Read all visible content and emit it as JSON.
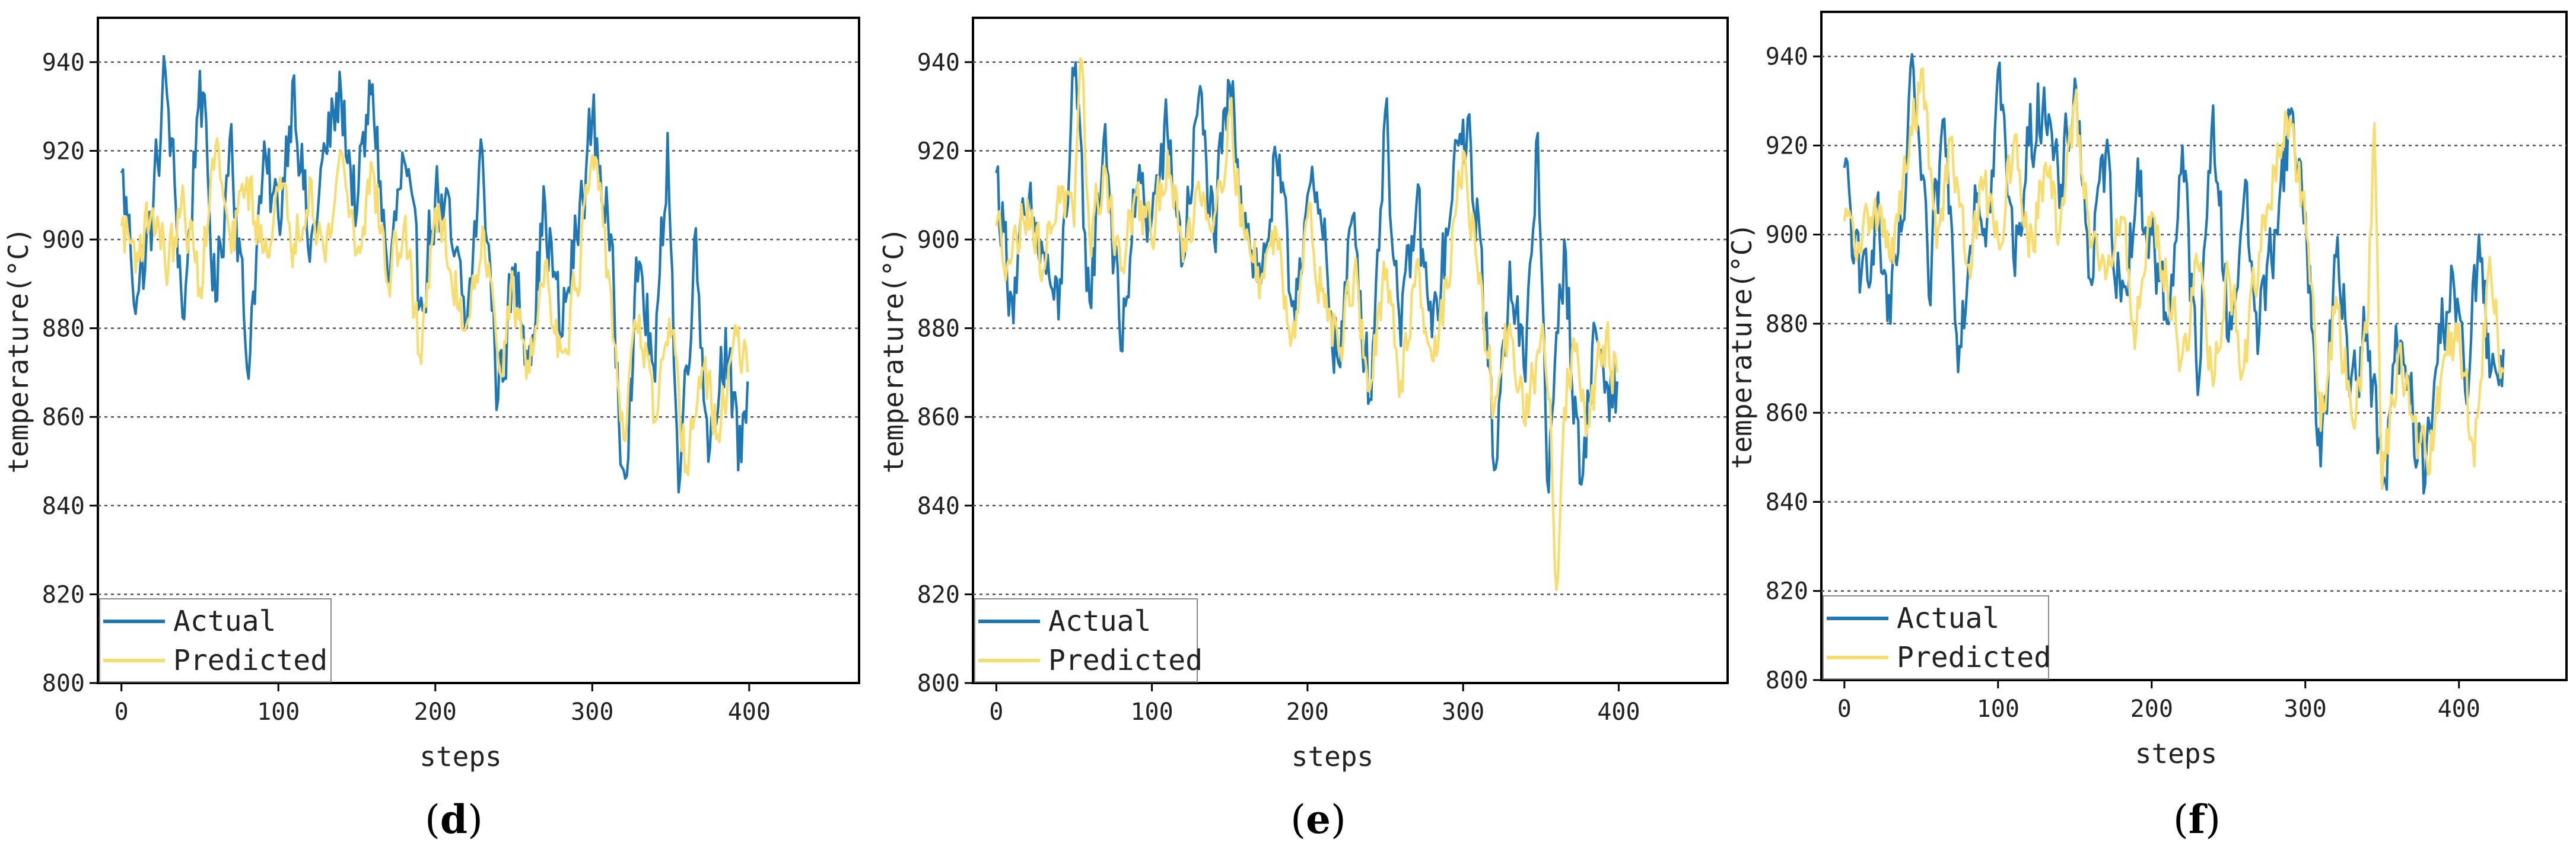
{
  "colors": {
    "actual": "#1f77b4",
    "predicted": "#f7dc6f",
    "frame": "#000000",
    "grid": "#555555"
  },
  "chart_data": [
    {
      "type": "line",
      "label": "d",
      "xlabel": "steps",
      "ylabel": "temperature(°C)",
      "xlim": [
        -15,
        470
      ],
      "ylim": [
        800,
        950
      ],
      "xticks": [
        0,
        100,
        200,
        300,
        400
      ],
      "yticks": [
        800,
        820,
        840,
        860,
        880,
        900,
        920,
        940
      ],
      "grid": "horizontal dotted",
      "legend": "bottom-left",
      "series": [
        {
          "name": "Actual",
          "color": "#1f77b4",
          "n": 400,
          "points": [
            [
              0,
              915
            ],
            [
              10,
              887
            ],
            [
              20,
              905
            ],
            [
              28,
              938
            ],
            [
              40,
              882
            ],
            [
              50,
              938
            ],
            [
              60,
              886
            ],
            [
              70,
              926
            ],
            [
              80,
              871
            ],
            [
              90,
              915
            ],
            [
              100,
              905
            ],
            [
              110,
              937
            ],
            [
              120,
              895
            ],
            [
              130,
              920
            ],
            [
              140,
              933
            ],
            [
              150,
              906
            ],
            [
              160,
              935
            ],
            [
              170,
              890
            ],
            [
              180,
              918
            ],
            [
              190,
              885
            ],
            [
              200,
              910
            ],
            [
              210,
              900
            ],
            [
              220,
              880
            ],
            [
              230,
              920
            ],
            [
              240,
              864
            ],
            [
              250,
              892
            ],
            [
              260,
              876
            ],
            [
              270,
              908
            ],
            [
              280,
              878
            ],
            [
              290,
              901
            ],
            [
              300,
              927
            ],
            [
              310,
              905
            ],
            [
              320,
              848
            ],
            [
              330,
              895
            ],
            [
              340,
              868
            ],
            [
              348,
              924
            ],
            [
              355,
              843
            ],
            [
              365,
              900
            ],
            [
              375,
              853
            ],
            [
              385,
              880
            ],
            [
              393,
              848
            ],
            [
              399,
              868
            ]
          ]
        },
        {
          "name": "Predicted",
          "color": "#f7dc6f",
          "n": 400,
          "points": [
            [
              0,
              903
            ],
            [
              10,
              897
            ],
            [
              20,
              907
            ],
            [
              30,
              894
            ],
            [
              40,
              908
            ],
            [
              50,
              889
            ],
            [
              60,
              921
            ],
            [
              70,
              897
            ],
            [
              80,
              914
            ],
            [
              90,
              897
            ],
            [
              100,
              911
            ],
            [
              110,
              899
            ],
            [
              120,
              914
            ],
            [
              130,
              895
            ],
            [
              140,
              920
            ],
            [
              150,
              897
            ],
            [
              160,
              916
            ],
            [
              170,
              890
            ],
            [
              180,
              903
            ],
            [
              190,
              874
            ],
            [
              200,
              907
            ],
            [
              210,
              892
            ],
            [
              220,
              881
            ],
            [
              230,
              903
            ],
            [
              240,
              873
            ],
            [
              250,
              887
            ],
            [
              260,
              870
            ],
            [
              270,
              895
            ],
            [
              280,
              875
            ],
            [
              290,
              889
            ],
            [
              300,
              919
            ],
            [
              310,
              893
            ],
            [
              320,
              855
            ],
            [
              330,
              883
            ],
            [
              340,
              859
            ],
            [
              350,
              878
            ],
            [
              360,
              849
            ],
            [
              370,
              871
            ],
            [
              380,
              856
            ],
            [
              390,
              877
            ],
            [
              399,
              870
            ]
          ]
        }
      ]
    },
    {
      "type": "line",
      "label": "e",
      "xlabel": "steps",
      "ylabel": "temperature(°C)",
      "xlim": [
        -15,
        470
      ],
      "ylim": [
        800,
        950
      ],
      "xticks": [
        0,
        100,
        200,
        300,
        400
      ],
      "yticks": [
        800,
        820,
        840,
        860,
        880,
        900,
        920,
        940
      ],
      "grid": "horizontal dotted",
      "legend": "bottom-left",
      "series": [
        {
          "name": "Actual",
          "color": "#1f77b4",
          "n": 400,
          "points": [
            [
              0,
              915
            ],
            [
              10,
              887
            ],
            [
              20,
              905
            ],
            [
              30,
              897
            ],
            [
              40,
              882
            ],
            [
              50,
              937
            ],
            [
              60,
              886
            ],
            [
              70,
              926
            ],
            [
              80,
              875
            ],
            [
              90,
              911
            ],
            [
              100,
              905
            ],
            [
              110,
              924
            ],
            [
              120,
              895
            ],
            [
              130,
              932
            ],
            [
              140,
              900
            ],
            [
              150,
              935
            ],
            [
              160,
              906
            ],
            [
              170,
              890
            ],
            [
              180,
              918
            ],
            [
              190,
              885
            ],
            [
              200,
              910
            ],
            [
              210,
              900
            ],
            [
              220,
              872
            ],
            [
              230,
              906
            ],
            [
              240,
              864
            ],
            [
              250,
              929
            ],
            [
              260,
              876
            ],
            [
              270,
              908
            ],
            [
              280,
              878
            ],
            [
              290,
              901
            ],
            [
              300,
              927
            ],
            [
              310,
              905
            ],
            [
              320,
              848
            ],
            [
              330,
              895
            ],
            [
              340,
              868
            ],
            [
              348,
              924
            ],
            [
              355,
              843
            ],
            [
              365,
              900
            ],
            [
              375,
              845
            ],
            [
              385,
              880
            ],
            [
              393,
              867
            ],
            [
              399,
              868
            ]
          ]
        },
        {
          "name": "Predicted",
          "color": "#f7dc6f",
          "n": 400,
          "points": [
            [
              0,
              903
            ],
            [
              10,
              896
            ],
            [
              20,
              909
            ],
            [
              30,
              893
            ],
            [
              40,
              912
            ],
            [
              50,
              903
            ],
            [
              55,
              940
            ],
            [
              60,
              900
            ],
            [
              70,
              916
            ],
            [
              80,
              893
            ],
            [
              90,
              910
            ],
            [
              100,
              899
            ],
            [
              110,
              920
            ],
            [
              120,
              895
            ],
            [
              130,
              913
            ],
            [
              140,
              905
            ],
            [
              150,
              929
            ],
            [
              160,
              900
            ],
            [
              170,
              891
            ],
            [
              180,
              902
            ],
            [
              190,
              878
            ],
            [
              200,
              905
            ],
            [
              210,
              889
            ],
            [
              220,
              875
            ],
            [
              230,
              893
            ],
            [
              240,
              866
            ],
            [
              250,
              891
            ],
            [
              260,
              868
            ],
            [
              270,
              895
            ],
            [
              280,
              873
            ],
            [
              290,
              889
            ],
            [
              300,
              920
            ],
            [
              310,
              890
            ],
            [
              320,
              862
            ],
            [
              330,
              881
            ],
            [
              340,
              858
            ],
            [
              350,
              878
            ],
            [
              356,
              864
            ],
            [
              360,
              821
            ],
            [
              365,
              862
            ],
            [
              370,
              875
            ],
            [
              380,
              858
            ],
            [
              390,
              876
            ],
            [
              399,
              870
            ]
          ]
        }
      ]
    },
    {
      "type": "line",
      "label": "f",
      "xlabel": "steps",
      "ylabel": "temperature(°C)",
      "xlim": [
        -15,
        470
      ],
      "ylim": [
        800,
        950
      ],
      "xticks": [
        0,
        100,
        200,
        300,
        400
      ],
      "yticks": [
        800,
        820,
        840,
        860,
        880,
        900,
        920,
        940
      ],
      "grid": "horizontal dotted",
      "legend": "bottom-left",
      "series": [
        {
          "name": "Actual",
          "color": "#1f77b4",
          "n": 430,
          "points": [
            [
              0,
              915
            ],
            [
              10,
              887
            ],
            [
              20,
              905
            ],
            [
              30,
              880
            ],
            [
              40,
              910
            ],
            [
              45,
              937
            ],
            [
              55,
              886
            ],
            [
              65,
              926
            ],
            [
              75,
              875
            ],
            [
              85,
              911
            ],
            [
              95,
              905
            ],
            [
              100,
              937
            ],
            [
              110,
              895
            ],
            [
              120,
              920
            ],
            [
              130,
              933
            ],
            [
              140,
              906
            ],
            [
              150,
              935
            ],
            [
              160,
              890
            ],
            [
              170,
              918
            ],
            [
              180,
              885
            ],
            [
              190,
              910
            ],
            [
              200,
              900
            ],
            [
              210,
              880
            ],
            [
              220,
              920
            ],
            [
              230,
              864
            ],
            [
              240,
              929
            ],
            [
              250,
              876
            ],
            [
              260,
              908
            ],
            [
              270,
              878
            ],
            [
              280,
              901
            ],
            [
              290,
              927
            ],
            [
              300,
              905
            ],
            [
              310,
              848
            ],
            [
              320,
              895
            ],
            [
              330,
              868
            ],
            [
              340,
              880
            ],
            [
              350,
              843
            ],
            [
              360,
              875
            ],
            [
              370,
              860
            ],
            [
              378,
              844
            ],
            [
              385,
              870
            ],
            [
              395,
              893
            ],
            [
              405,
              862
            ],
            [
              413,
              900
            ],
            [
              420,
              868
            ],
            [
              428,
              866
            ]
          ]
        },
        {
          "name": "Predicted",
          "color": "#f7dc6f",
          "n": 430,
          "points": [
            [
              0,
              903
            ],
            [
              10,
              896
            ],
            [
              20,
              908
            ],
            [
              30,
              894
            ],
            [
              40,
              914
            ],
            [
              50,
              937
            ],
            [
              60,
              897
            ],
            [
              70,
              922
            ],
            [
              80,
              893
            ],
            [
              90,
              910
            ],
            [
              100,
              899
            ],
            [
              110,
              920
            ],
            [
              120,
              895
            ],
            [
              130,
              915
            ],
            [
              140,
              900
            ],
            [
              150,
              930
            ],
            [
              160,
              897
            ],
            [
              170,
              890
            ],
            [
              180,
              904
            ],
            [
              190,
              878
            ],
            [
              200,
              905
            ],
            [
              210,
              889
            ],
            [
              220,
              873
            ],
            [
              230,
              893
            ],
            [
              240,
              866
            ],
            [
              250,
              891
            ],
            [
              260,
              870
            ],
            [
              270,
              896
            ],
            [
              280,
              915
            ],
            [
              290,
              926
            ],
            [
              300,
              903
            ],
            [
              310,
              856
            ],
            [
              320,
              886
            ],
            [
              330,
              860
            ],
            [
              340,
              878
            ],
            [
              345,
              925
            ],
            [
              350,
              843
            ],
            [
              360,
              872
            ],
            [
              370,
              858
            ],
            [
              380,
              846
            ],
            [
              390,
              872
            ],
            [
              400,
              880
            ],
            [
              410,
              848
            ],
            [
              420,
              895
            ],
            [
              428,
              870
            ]
          ]
        }
      ]
    }
  ]
}
